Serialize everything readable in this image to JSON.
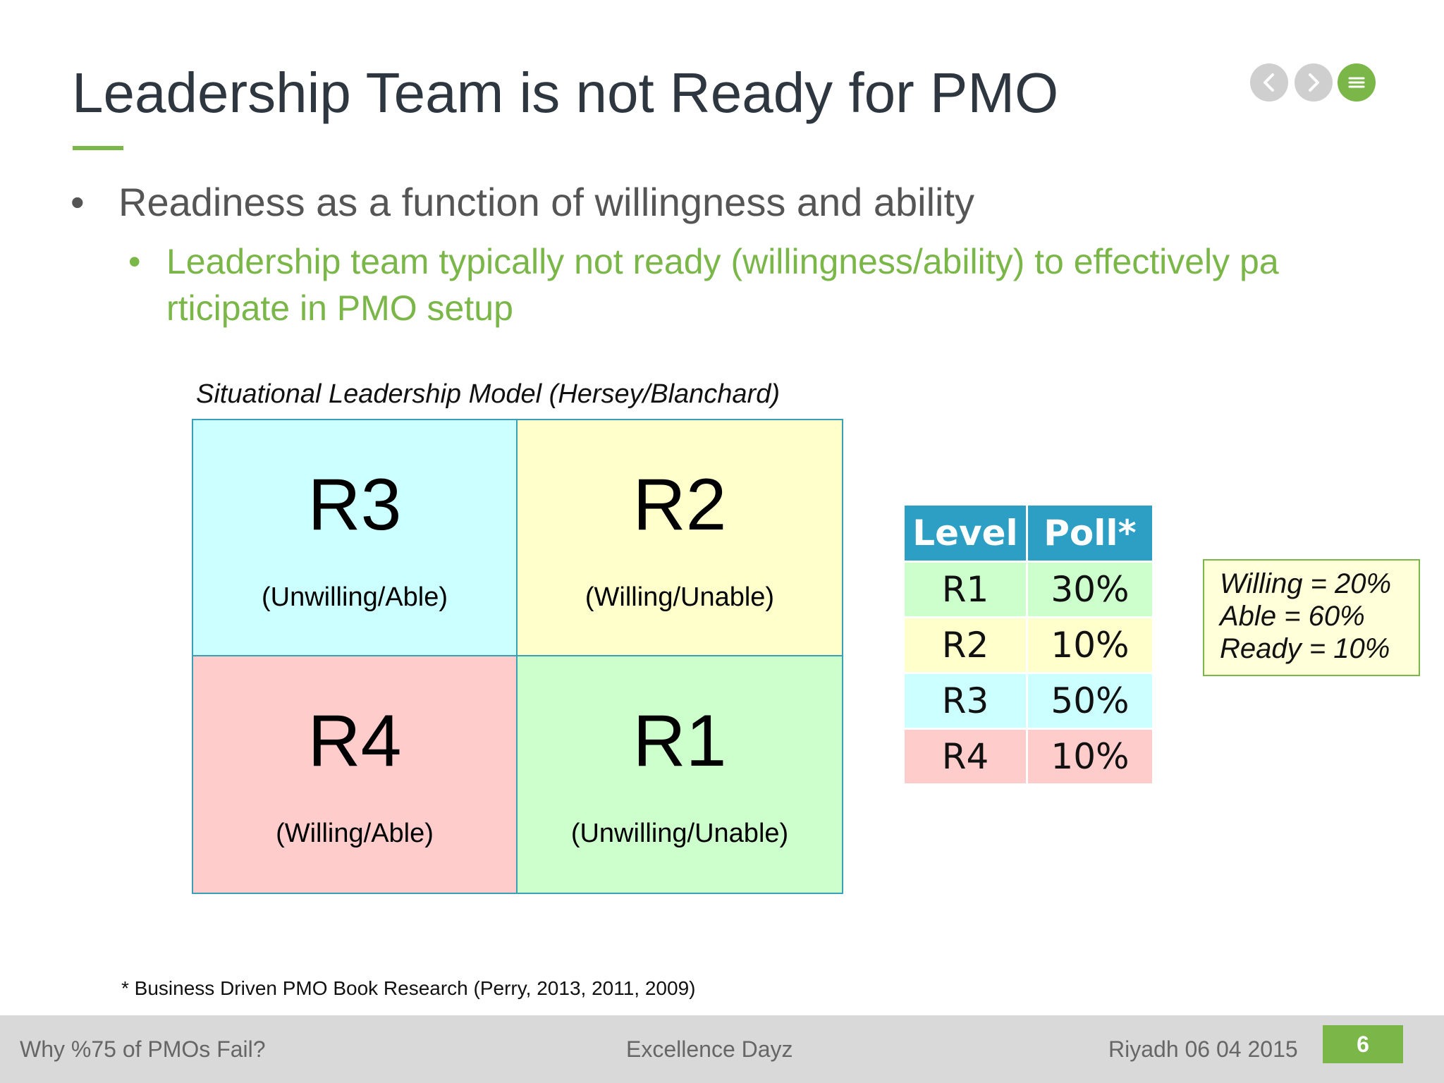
{
  "slide": {
    "title": "Leadership Team is not Ready for PMO",
    "bullet_glyph": "•",
    "bullet_main": "Readiness as a function of willingness and ability",
    "bullet_sub_line1": "Leadership team typically not ready (willingness/ability) to effectively pa",
    "bullet_sub_line2": "rticipate in PMO setup"
  },
  "nav": {
    "prev_icon": "chevron-left-icon",
    "next_icon": "chevron-right-icon",
    "menu_icon": "menu-icon"
  },
  "model": {
    "caption": "Situational Leadership Model (Hersey/Blanchard)",
    "quadrants": {
      "r3": {
        "code": "R3",
        "desc": "(Unwilling/Able)",
        "color": "#ccffff"
      },
      "r2": {
        "code": "R2",
        "desc": "(Willing/Unable)",
        "color": "#ffffcc"
      },
      "r4": {
        "code": "R4",
        "desc": "(Willing/Able)",
        "color": "#ffcccc"
      },
      "r1": {
        "code": "R1",
        "desc": "(Unwilling/Unable)",
        "color": "#ccffcc"
      }
    }
  },
  "poll": {
    "headers": {
      "level": "Level",
      "poll": "Poll*"
    },
    "rows": [
      {
        "level": "R1",
        "poll": "30%"
      },
      {
        "level": "R2",
        "poll": "10%"
      },
      {
        "level": "R3",
        "poll": "50%"
      },
      {
        "level": "R4",
        "poll": "10%"
      }
    ]
  },
  "summary": {
    "willing": "Willing = 20%",
    "able": "Able = 60%",
    "ready": "Ready = 10%"
  },
  "footnote": "* Business Driven PMO Book Research (Perry, 2013, 2011, 2009)",
  "footer": {
    "left": "Why %75 of PMOs Fail?",
    "center": "Excellence Dayz",
    "right": "Riyadh 06 04 2015",
    "page_number": "6"
  },
  "colors": {
    "accent_green": "#7ab648",
    "table_header": "#2d9fc5",
    "grid_border": "#3aa0b8"
  }
}
